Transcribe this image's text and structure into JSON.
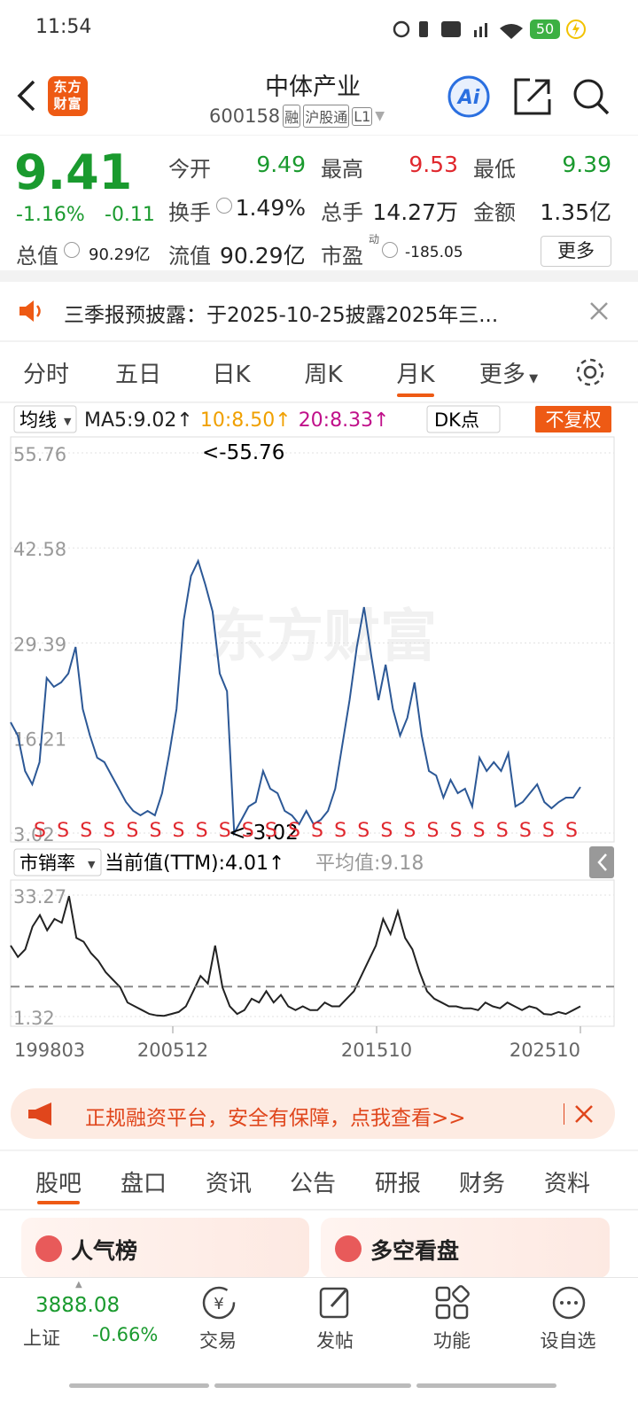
{
  "status_bar": {
    "time": "11:54",
    "battery": "50"
  },
  "header": {
    "logo": "东方财富",
    "title": "中体产业",
    "code": "600158",
    "tags": [
      "融",
      "沪股通",
      "L1"
    ]
  },
  "quote": {
    "price": "9.41",
    "change_pct": "-1.16%",
    "change": "-0.11",
    "fields": [
      {
        "label": "今开",
        "value": "9.49"
      },
      {
        "label": "最高",
        "value": "9.53"
      },
      {
        "label": "最低",
        "value": "9.39"
      },
      {
        "label": "换手",
        "value": "1.49%"
      },
      {
        "label": "总手",
        "value": "14.27万"
      },
      {
        "label": "金额",
        "value": "1.35亿"
      }
    ],
    "total_cap_label": "总值",
    "total_cap": "90.29亿",
    "float_cap_label": "流值",
    "float_cap": "90.29亿",
    "pe_label": "市盈",
    "pe_sup": "动",
    "pe": "-185.05",
    "more": "更多"
  },
  "notice": "三季报预披露：于2025-10-25披露2025年三...",
  "period_tabs": [
    "分时",
    "五日",
    "日K",
    "周K",
    "月K",
    "更多"
  ],
  "price_chart": {
    "type": "line",
    "indicator": "均线",
    "ma_legend": [
      {
        "name": "MA5:9.02↑",
        "color": "#222222"
      },
      {
        "name": "10:8.50↑",
        "color": "#f0a000"
      },
      {
        "name": "20:8.33↑",
        "color": "#c0108a"
      }
    ],
    "dk": "DK点",
    "adjust": "不复权",
    "max_label": "<-55.76",
    "min_label": "<-3.02",
    "watermark": "东方财富",
    "ylim": [
      3.02,
      55.76
    ],
    "yticks": [
      55.76,
      42.58,
      29.39,
      16.21,
      3.02
    ],
    "color": "#2c5896",
    "values": [
      18.39,
      16.54,
      11.63,
      9.78,
      12.86,
      24.53,
      23.31,
      23.92,
      25.15,
      28.84,
      20.23,
      16.54,
      13.47,
      12.86,
      11.01,
      9.17,
      7.32,
      6.09,
      5.48,
      6.09,
      5.48,
      8.55,
      14.08,
      20.23,
      32.53,
      38.67,
      40.76,
      37.44,
      33.76,
      25.15,
      22.69,
      3.02,
      4.86,
      6.71,
      7.32,
      11.63,
      9.17,
      8.55,
      6.09,
      5.48,
      4.25,
      6.09,
      4.25,
      4.86,
      6.09,
      9.17,
      15.31,
      21.46,
      28.84,
      34.37,
      27.61,
      21.46,
      26.38,
      20.23,
      16.54,
      19.0,
      23.92,
      16.54,
      11.63,
      11.01,
      7.94,
      10.4,
      8.55,
      9.17,
      6.71,
      13.47,
      11.63,
      12.86,
      11.63,
      14.08,
      6.71,
      7.32,
      8.55,
      9.78,
      7.32,
      6.46,
      7.32,
      7.94,
      7.94,
      9.41
    ],
    "signals": [
      "S",
      "S",
      "S",
      "S",
      "S",
      "S",
      "S",
      "S",
      "S",
      "S",
      "S",
      "S",
      "S",
      "S",
      "S",
      "S",
      "S",
      "S",
      "S",
      "S",
      "S",
      "S",
      "S",
      "S"
    ]
  },
  "ps_chart": {
    "type": "line",
    "indicator": "市销率",
    "current_text": "当前值(TTM):4.01↑",
    "average_text": "平均值:9.18",
    "average": 9.18,
    "ylim": [
      1.32,
      33.27
    ],
    "yticks": [
      33.27,
      1.32
    ],
    "color": "#222222",
    "x_labels": [
      "199803",
      "200512",
      "201510",
      "202510"
    ],
    "values": [
      20,
      17,
      19,
      25,
      28,
      24,
      27,
      26,
      33,
      22,
      21,
      18,
      16,
      13,
      11,
      9,
      5,
      4,
      3,
      2,
      1.6,
      1.5,
      2,
      2.5,
      4,
      8,
      12,
      10,
      20,
      9,
      4,
      2,
      3,
      6,
      5,
      8,
      5,
      7,
      4,
      3,
      4,
      3,
      3,
      5,
      4,
      4,
      6,
      8,
      12,
      16,
      20,
      27,
      23,
      29,
      22,
      19,
      13,
      8,
      6,
      5,
      4,
      4,
      3.5,
      3.5,
      3,
      5,
      4,
      3.5,
      5,
      4,
      3,
      4,
      3.5,
      2,
      1.8,
      2.5,
      2,
      3,
      4.01
    ]
  },
  "ad": "正规融资平台，安全有保障，点我查看>>",
  "content_tabs": [
    "股吧",
    "盘口",
    "资讯",
    "公告",
    "研报",
    "财务",
    "资料"
  ],
  "cards": [
    "人气榜",
    "多空看盘"
  ],
  "bottom_nav": {
    "index_value": "3888.08",
    "index_name": "上证",
    "index_change": "-0.66%",
    "items": [
      "交易",
      "发帖",
      "功能",
      "设自选"
    ]
  }
}
